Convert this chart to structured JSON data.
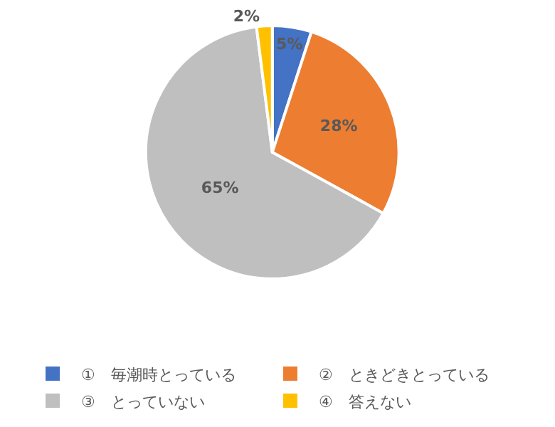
{
  "chart_data": {
    "type": "pie",
    "categories": [
      "①　毎潮時とっている",
      "②　ときどきとっている",
      "③　とっていない",
      "④　答えない"
    ],
    "values": [
      5,
      28,
      65,
      2
    ],
    "colors": [
      "#4472c4",
      "#ed7d31",
      "#bfbfbf",
      "#ffc000"
    ],
    "value_labels": [
      "5%",
      "28%",
      "65%",
      "2%"
    ],
    "legend": "bottom"
  }
}
